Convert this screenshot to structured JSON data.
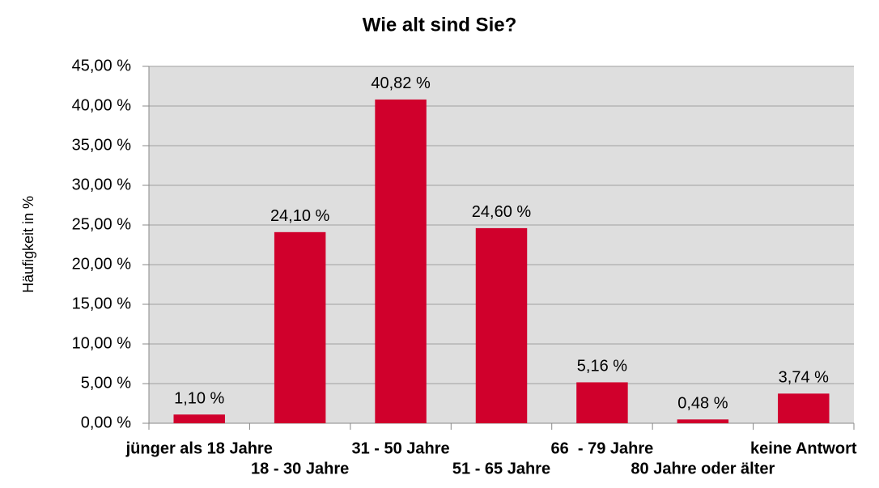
{
  "chart_data": {
    "type": "bar",
    "title": "Wie alt sind Sie?",
    "y_label": "Häufigkeit in %",
    "categories": [
      "jünger als 18 Jahre",
      "18 - 30 Jahre",
      "31 - 50 Jahre",
      "51 - 65 Jahre",
      "66  - 79 Jahre",
      "80 Jahre oder älter",
      "keine Antwort"
    ],
    "values": [
      1.1,
      24.1,
      40.82,
      24.6,
      5.16,
      0.48,
      3.74
    ],
    "value_labels": [
      "1,10 %",
      "24,10 %",
      "40,82 %",
      "24,60 %",
      "5,16 %",
      "0,48 %",
      "3,74 %"
    ],
    "color": "#d0002c",
    "ylim": [
      0,
      45
    ],
    "yticks": [
      {
        "value": 0,
        "label": "0,00 %"
      },
      {
        "value": 5,
        "label": "5,00 %"
      },
      {
        "value": 10,
        "label": "10,00 %"
      },
      {
        "value": 15,
        "label": "15,00 %"
      },
      {
        "value": 20,
        "label": "20,00 %"
      },
      {
        "value": 25,
        "label": "25,00 %"
      },
      {
        "value": 30,
        "label": "30,00 %"
      },
      {
        "value": 35,
        "label": "35,00 %"
      },
      {
        "value": 40,
        "label": "40,00 %"
      },
      {
        "value": 45,
        "label": "45,00 %"
      }
    ],
    "grid": true
  }
}
